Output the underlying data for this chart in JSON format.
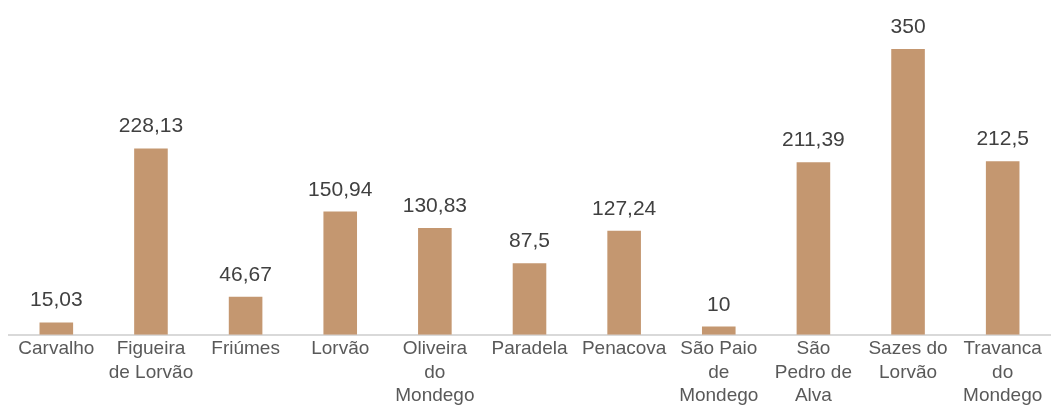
{
  "chart_data": {
    "type": "bar",
    "categories": [
      "Carvalho",
      "Figueira de Lorvão",
      "Friúmes",
      "Lorvão",
      "Oliveira do Mondego",
      "Paradela",
      "Penacova",
      "São Paio de Mondego",
      "São Pedro de Alva",
      "Sazes do Lorvão",
      "Travanca do Mondego"
    ],
    "values": [
      15.03,
      228.13,
      46.67,
      150.94,
      130.83,
      87.5,
      127.24,
      10,
      211.39,
      350,
      212.5
    ],
    "value_labels": [
      "15,03",
      "228,13",
      "46,67",
      "150,94",
      "130,83",
      "87,5",
      "127,24",
      "10",
      "211,39",
      "350",
      "212,5"
    ],
    "color": "#c49770",
    "tick_labels": "x"
  }
}
